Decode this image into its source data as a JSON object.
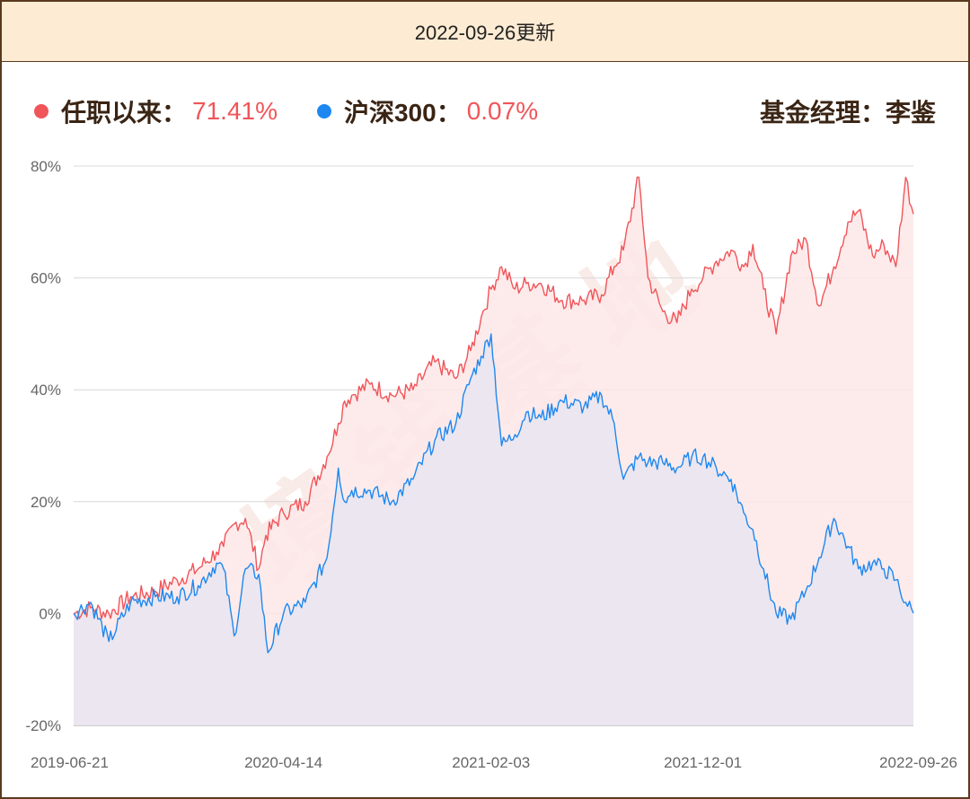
{
  "header": {
    "update_text": "2022-09-26更新"
  },
  "legend": {
    "fund_label": "任职以来：",
    "fund_value": "71.41%",
    "index_label": "沪深300：",
    "index_value": "0.07%",
    "manager_text": "基金经理：李鉴"
  },
  "watermark": "境 钱 基 地",
  "colors": {
    "fund": "#f0555a",
    "fund_fill": "#fde7e7",
    "index": "#1e88f0",
    "index_fill": "#e9e6f0",
    "value_text": "#f0555a",
    "grid": "#d8d8d8"
  },
  "chart_data": {
    "type": "area",
    "ylim": [
      -20,
      80
    ],
    "yticks": [
      80,
      60,
      40,
      20,
      0,
      -20
    ],
    "ytick_labels": [
      "80%",
      "60%",
      "40%",
      "20%",
      "0%",
      "-20%"
    ],
    "xlim": [
      "2019-06-21",
      "2022-09-26"
    ],
    "xtick_labels": [
      "2019-06-21",
      "2020-04-14",
      "2021-02-03",
      "2021-12-01",
      "2022-09-26"
    ],
    "grid": true,
    "series": [
      {
        "name": "任职以来",
        "x": [
          "2019-06-21",
          "2019-07-15",
          "2019-08-10",
          "2019-09-10",
          "2019-10-15",
          "2019-11-15",
          "2019-12-15",
          "2020-01-10",
          "2020-01-20",
          "2020-02-04",
          "2020-02-20",
          "2020-03-10",
          "2020-03-20",
          "2020-04-14",
          "2020-05-15",
          "2020-06-15",
          "2020-07-01",
          "2020-07-10",
          "2020-07-20",
          "2020-08-15",
          "2020-09-15",
          "2020-10-15",
          "2020-11-15",
          "2020-12-15",
          "2021-01-05",
          "2021-01-20",
          "2021-02-03",
          "2021-02-18",
          "2021-03-09",
          "2021-03-25",
          "2021-04-15",
          "2021-05-15",
          "2021-06-15",
          "2021-07-10",
          "2021-07-28",
          "2021-08-10",
          "2021-09-01",
          "2021-09-14",
          "2021-10-05",
          "2021-10-25",
          "2021-11-15",
          "2021-12-01",
          "2021-12-20",
          "2022-01-10",
          "2022-01-28",
          "2022-02-10",
          "2022-02-25",
          "2022-03-15",
          "2022-04-05",
          "2022-04-26",
          "2022-05-15",
          "2022-06-05",
          "2022-06-25",
          "2022-07-10",
          "2022-07-30",
          "2022-08-15",
          "2022-09-01",
          "2022-09-15",
          "2022-09-26"
        ],
        "y": [
          0,
          1,
          0,
          3,
          4,
          6,
          8,
          11,
          12,
          16,
          17,
          8,
          14,
          18,
          20,
          28,
          34,
          38,
          39,
          41,
          39,
          40,
          45,
          42,
          47,
          53,
          58,
          62,
          58,
          59,
          59,
          56,
          56,
          57,
          62,
          65,
          78,
          60,
          54,
          52,
          58,
          60,
          63,
          65,
          62,
          66,
          58,
          50,
          64,
          67,
          55,
          62,
          70,
          72,
          64,
          66,
          62,
          78,
          71.41
        ]
      },
      {
        "name": "沪深300",
        "x": [
          "2019-06-21",
          "2019-07-15",
          "2019-08-10",
          "2019-09-10",
          "2019-10-15",
          "2019-11-15",
          "2019-12-15",
          "2020-01-10",
          "2020-01-20",
          "2020-02-04",
          "2020-02-20",
          "2020-03-10",
          "2020-03-23",
          "2020-04-14",
          "2020-05-15",
          "2020-06-15",
          "2020-07-01",
          "2020-07-10",
          "2020-07-20",
          "2020-08-15",
          "2020-09-15",
          "2020-10-15",
          "2020-11-15",
          "2020-12-15",
          "2021-01-05",
          "2021-01-20",
          "2021-02-03",
          "2021-02-18",
          "2021-03-09",
          "2021-03-25",
          "2021-04-15",
          "2021-05-15",
          "2021-06-15",
          "2021-07-10",
          "2021-07-28",
          "2021-08-10",
          "2021-09-01",
          "2021-09-14",
          "2021-10-05",
          "2021-10-25",
          "2021-11-15",
          "2021-12-01",
          "2021-12-20",
          "2022-01-10",
          "2022-01-28",
          "2022-02-10",
          "2022-02-25",
          "2022-03-15",
          "2022-04-05",
          "2022-04-26",
          "2022-05-15",
          "2022-06-05",
          "2022-06-25",
          "2022-07-10",
          "2022-07-30",
          "2022-08-15",
          "2022-09-01",
          "2022-09-15",
          "2022-09-26"
        ],
        "y": [
          0,
          2,
          -5,
          2,
          3,
          3,
          5,
          9,
          8,
          -4,
          8,
          7,
          -7,
          0,
          2,
          10,
          26,
          20,
          22,
          22,
          20,
          24,
          31,
          34,
          42,
          46,
          50,
          30,
          32,
          36,
          35,
          38,
          37,
          39,
          34,
          24,
          28,
          27,
          27,
          26,
          28,
          28,
          26,
          24,
          18,
          15,
          8,
          0,
          -1,
          4,
          10,
          17,
          12,
          8,
          9,
          8,
          6,
          2,
          0.07
        ]
      }
    ]
  }
}
